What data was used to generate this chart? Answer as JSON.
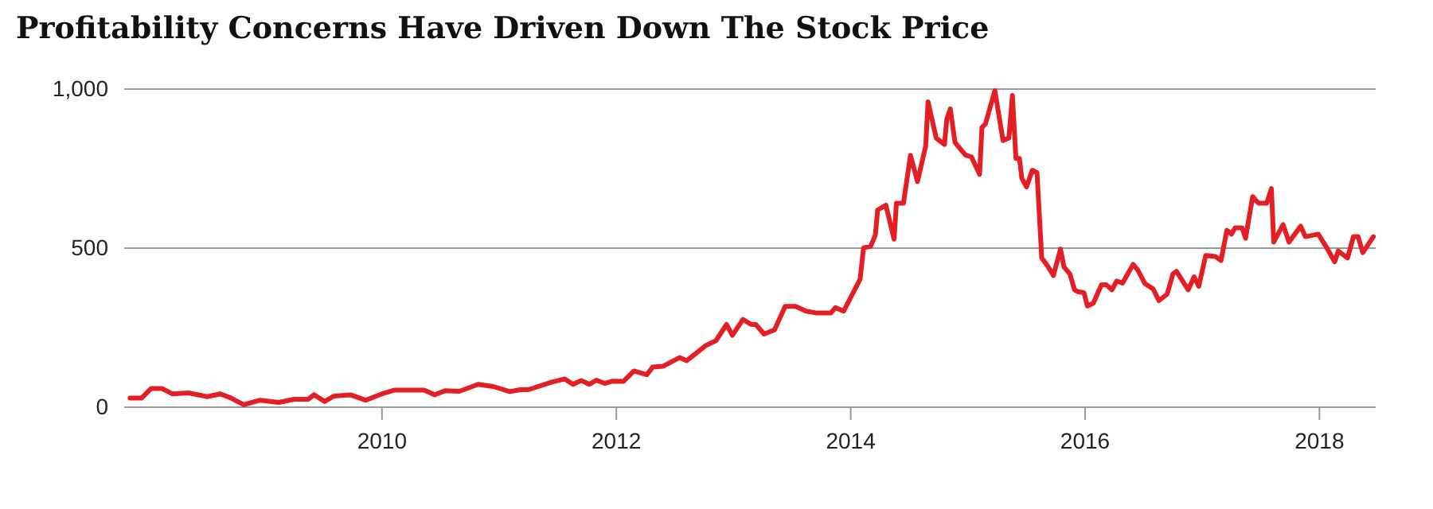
{
  "chart_data": {
    "type": "line",
    "title": "Profitability Concerns Have Driven Down The Stock Price",
    "xlim": [
      2007.8,
      2018.48
    ],
    "xticks": [
      2010,
      2012,
      2014,
      2016,
      2018
    ],
    "ylim": [
      0,
      1000
    ],
    "yticks": [
      0,
      500,
      {
        "value": 1000,
        "label": "1,000"
      }
    ],
    "grid": "y",
    "series": [
      {
        "color": "#e31e24",
        "x": [
          2007.85,
          2007.95,
          2008.03,
          2008.12,
          2008.21,
          2008.35,
          2008.51,
          2008.62,
          2008.71,
          2008.82,
          2008.96,
          2009.12,
          2009.25,
          2009.37,
          2009.42,
          2009.51,
          2009.59,
          2009.73,
          2009.86,
          2010.0,
          2010.11,
          2010.36,
          2010.45,
          2010.54,
          2010.66,
          2010.82,
          2010.95,
          2011.09,
          2011.18,
          2011.25,
          2011.45,
          2011.56,
          2011.63,
          2011.7,
          2011.77,
          2011.83,
          2011.9,
          2011.97,
          2012.06,
          2012.15,
          2012.26,
          2012.31,
          2012.4,
          2012.54,
          2012.6,
          2012.76,
          2012.85,
          2012.94,
          2012.99,
          2013.08,
          2013.15,
          2013.19,
          2013.26,
          2013.35,
          2013.44,
          2013.53,
          2013.62,
          2013.71,
          2013.83,
          2013.87,
          2013.94,
          2014.08,
          2014.11,
          2014.17,
          2014.21,
          2014.23,
          2014.3,
          2014.37,
          2014.39,
          2014.45,
          2014.51,
          2014.57,
          2014.64,
          2014.66,
          2014.73,
          2014.8,
          2014.82,
          2014.85,
          2014.89,
          2014.98,
          2015.03,
          2015.1,
          2015.12,
          2015.15,
          2015.23,
          2015.3,
          2015.35,
          2015.38,
          2015.41,
          2015.44,
          2015.46,
          2015.5,
          2015.55,
          2015.59,
          2015.63,
          2015.68,
          2015.73,
          2015.79,
          2015.82,
          2015.87,
          2015.91,
          2015.94,
          2015.99,
          2016.02,
          2016.07,
          2016.14,
          2016.18,
          2016.23,
          2016.27,
          2016.32,
          2016.41,
          2016.45,
          2016.51,
          2016.58,
          2016.63,
          2016.7,
          2016.75,
          2016.78,
          2016.88,
          2016.93,
          2016.97,
          2017.03,
          2017.11,
          2017.16,
          2017.21,
          2017.25,
          2017.28,
          2017.34,
          2017.37,
          2017.43,
          2017.48,
          2017.55,
          2017.59,
          2017.61,
          2017.69,
          2017.74,
          2017.84,
          2017.88,
          2017.99,
          2018.06,
          2018.13,
          2018.16,
          2018.24,
          2018.29,
          2018.33,
          2018.37,
          2018.46
        ],
        "values": [
          29,
          29,
          59,
          59,
          42,
          45,
          33,
          42,
          29,
          8,
          22,
          15,
          25,
          25,
          39,
          18,
          35,
          39,
          22,
          42,
          54,
          54,
          39,
          52,
          50,
          72,
          65,
          49,
          55,
          55,
          79,
          89,
          72,
          84,
          72,
          85,
          75,
          82,
          81,
          114,
          102,
          126,
          129,
          156,
          146,
          193,
          209,
          260,
          226,
          276,
          260,
          260,
          230,
          243,
          317,
          317,
          302,
          296,
          296,
          313,
          302,
          402,
          501,
          506,
          541,
          620,
          635,
          528,
          641,
          641,
          792,
          709,
          821,
          960,
          846,
          826,
          905,
          938,
          832,
          792,
          787,
          732,
          879,
          891,
          995,
          838,
          846,
          980,
          782,
          782,
          720,
          692,
          745,
          737,
          469,
          444,
          414,
          497,
          441,
          419,
          369,
          363,
          360,
          318,
          327,
          385,
          385,
          369,
          397,
          390,
          449,
          431,
          389,
          372,
          335,
          355,
          419,
          427,
          369,
          410,
          380,
          477,
          474,
          461,
          556,
          544,
          564,
          564,
          531,
          662,
          641,
          641,
          687,
          519,
          574,
          519,
          569,
          536,
          544,
          503,
          457,
          491,
          469,
          536,
          536,
          486,
          536
        ]
      }
    ]
  }
}
